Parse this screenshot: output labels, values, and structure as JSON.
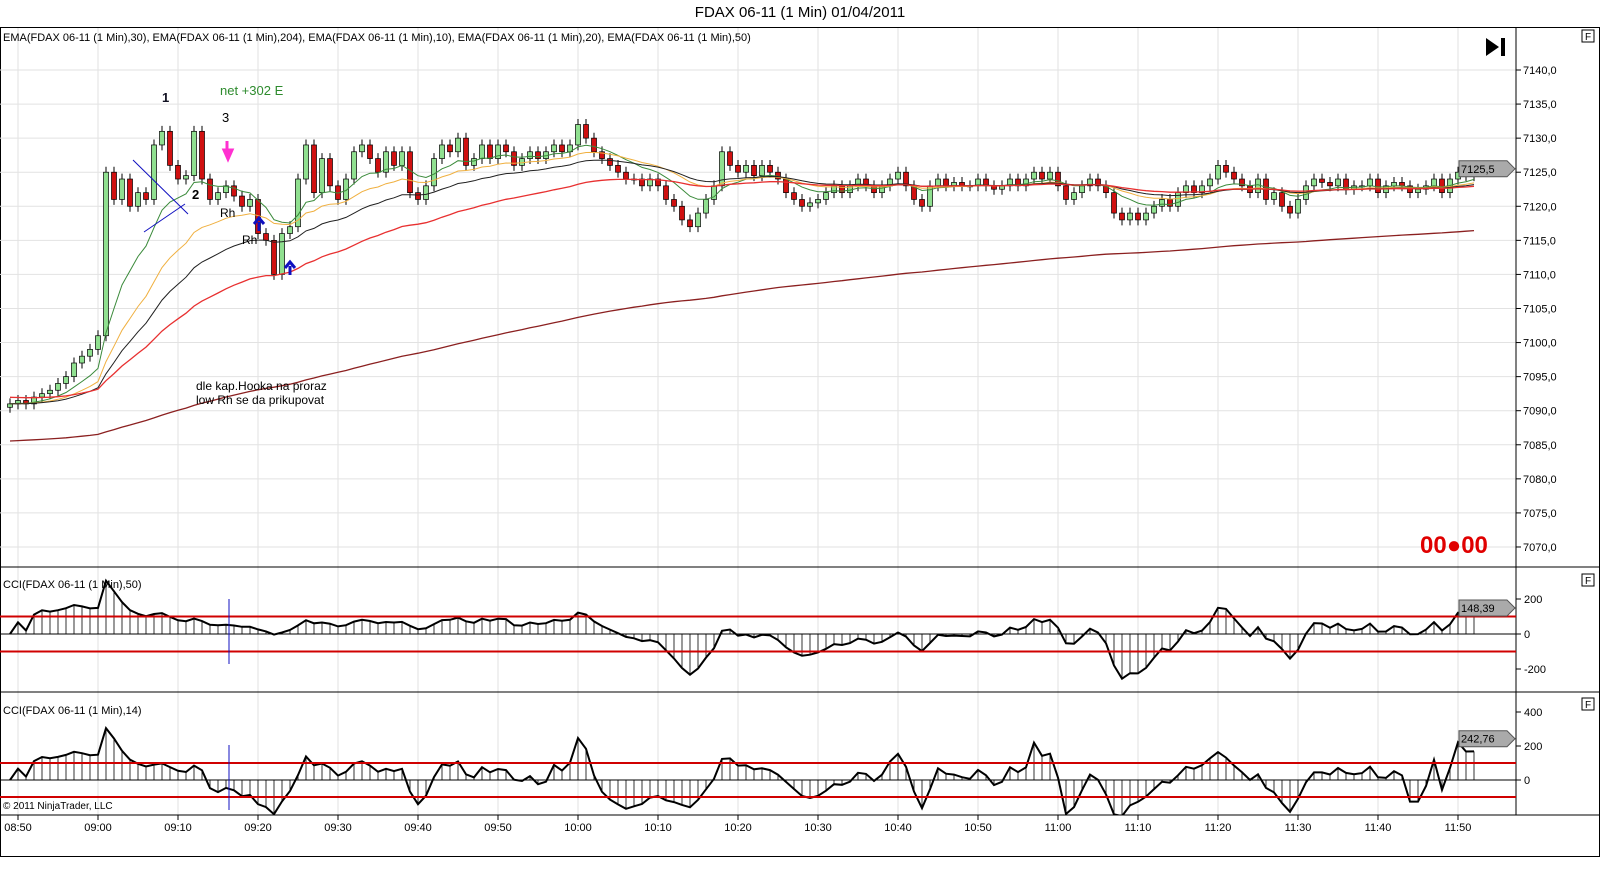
{
  "title": "FDAX 06-11 (1 Min)  01/04/2011",
  "main_legend": "EMA(FDAX 06-11 (1 Min),30), EMA(FDAX 06-11 (1 Min),204), EMA(FDAX 06-11 (1 Min),10), EMA(FDAX 06-11 (1 Min),20), EMA(FDAX 06-11 (1 Min),50)",
  "cci50_legend": "CCI(FDAX 06-11 (1 Min),50)",
  "cci14_legend": "CCI(FDAX 06-11 (1 Min),14)",
  "copyright": "© 2011 NinjaTrader, LLC",
  "timer": "00●00",
  "panel_button": "F",
  "annotations": {
    "n1": "1",
    "n2": "2",
    "n3": "3",
    "net": "net +302 E",
    "rh1": "Rh",
    "rh2": "Rh",
    "note1": "dle kap.Hooka na proraz",
    "note2": "low Rh se da prikupovat"
  },
  "colors": {
    "up": "#90e090",
    "down": "#d01010",
    "ema10": "#3a8a3a",
    "ema20": "#f0b040",
    "ema30": "#202020",
    "ema50": "#e83030",
    "ema204": "#8b2020",
    "cci_level": "#d00000",
    "marker": "#1010c0",
    "arrow_down": "#ff30d0"
  },
  "chart_data": {
    "type": "candlestick",
    "start_time": "08:49",
    "interval_minutes": 1,
    "close": [
      7091,
      7091.5,
      7091,
      7092,
      7092.5,
      7093,
      7094,
      7095,
      7097,
      7098,
      7099,
      7101,
      7125,
      7121,
      7124,
      7120,
      7122,
      7121,
      7129,
      7131,
      7126,
      7124,
      7124.5,
      7131,
      7124,
      7121,
      7122,
      7123,
      7121.5,
      7120,
      7121,
      7116,
      7115,
      7110,
      7116,
      7117,
      7124,
      7129,
      7122,
      7127,
      7123,
      7121,
      7124,
      7128,
      7129,
      7127,
      7125,
      7128,
      7126,
      7128,
      7122,
      7121,
      7123,
      7127,
      7129,
      7128,
      7130,
      7126,
      7127,
      7129,
      7127,
      7129,
      7128,
      7126,
      7127,
      7128,
      7127,
      7128,
      7129,
      7128,
      7129,
      7132,
      7130,
      7128,
      7127,
      7126,
      7125,
      7124,
      7124,
      7123,
      7124,
      7123,
      7121,
      7120,
      7118,
      7117,
      7119,
      7121,
      7123,
      7128,
      7126,
      7125,
      7126,
      7124.5,
      7126,
      7125,
      7124,
      7122,
      7121,
      7120,
      7120.5,
      7121,
      7122,
      7123,
      7122,
      7123,
      7124,
      7123,
      7122,
      7123,
      7124,
      7125,
      7123,
      7121,
      7120,
      7123,
      7124,
      7123,
      7123.5,
      7123,
      7123,
      7124,
      7123,
      7122.5,
      7123,
      7124,
      7123,
      7124,
      7125,
      7124,
      7125,
      7123,
      7121,
      7122,
      7123,
      7124,
      7123,
      7122,
      7119,
      7118,
      7119,
      7118,
      7119,
      7120,
      7121,
      7120,
      7122,
      7123,
      7122,
      7123,
      7124,
      7126,
      7125,
      7124,
      7123,
      7122,
      7124,
      7121,
      7122,
      7120,
      7119,
      7121,
      7123,
      7124,
      7123.5,
      7123,
      7124,
      7122.5,
      7123,
      7123,
      7124,
      7122,
      7123,
      7123.5,
      7123,
      7122,
      7122.5,
      7123,
      7124,
      7122,
      7124,
      7125,
      7124.5,
      7125.5
    ],
    "ema_periods": [
      10,
      20,
      30,
      50,
      204
    ],
    "ema_seed": {
      "10": 7091,
      "20": 7091,
      "30": 7091,
      "50": 7092,
      "204": 7085.5
    },
    "price_ticks": [
      "7140,0",
      "7135,0",
      "7130,0",
      "7125,0",
      "7120,0",
      "7115,0",
      "7110,0",
      "7105,0",
      "7100,0",
      "7095,0",
      "7090,0",
      "7085,0",
      "7080,0",
      "7075,0",
      "7070,0"
    ],
    "price_tick_values": [
      7140,
      7135,
      7130,
      7125,
      7120,
      7115,
      7110,
      7105,
      7100,
      7095,
      7090,
      7085,
      7080,
      7075,
      7070
    ],
    "ylim": [
      7067,
      7146
    ],
    "last_price": "7125,5",
    "time_ticks": [
      "08:50",
      "09:00",
      "09:10",
      "09:20",
      "09:30",
      "09:40",
      "09:50",
      "10:00",
      "10:10",
      "10:20",
      "10:30",
      "10:40",
      "10:50",
      "11:00",
      "11:10",
      "11:20",
      "11:30",
      "11:40",
      "11:50"
    ],
    "cci50": {
      "ticks": [
        "200",
        "0",
        "-200"
      ],
      "tick_values": [
        200,
        0,
        -200
      ],
      "levels": [
        100,
        -100
      ],
      "last": "148,39",
      "period": 50
    },
    "cci14": {
      "ticks": [
        "400",
        "200",
        "0"
      ],
      "tick_values": [
        400,
        200,
        0
      ],
      "levels": [
        100,
        -100
      ],
      "last": "242,76",
      "period": 14
    }
  }
}
